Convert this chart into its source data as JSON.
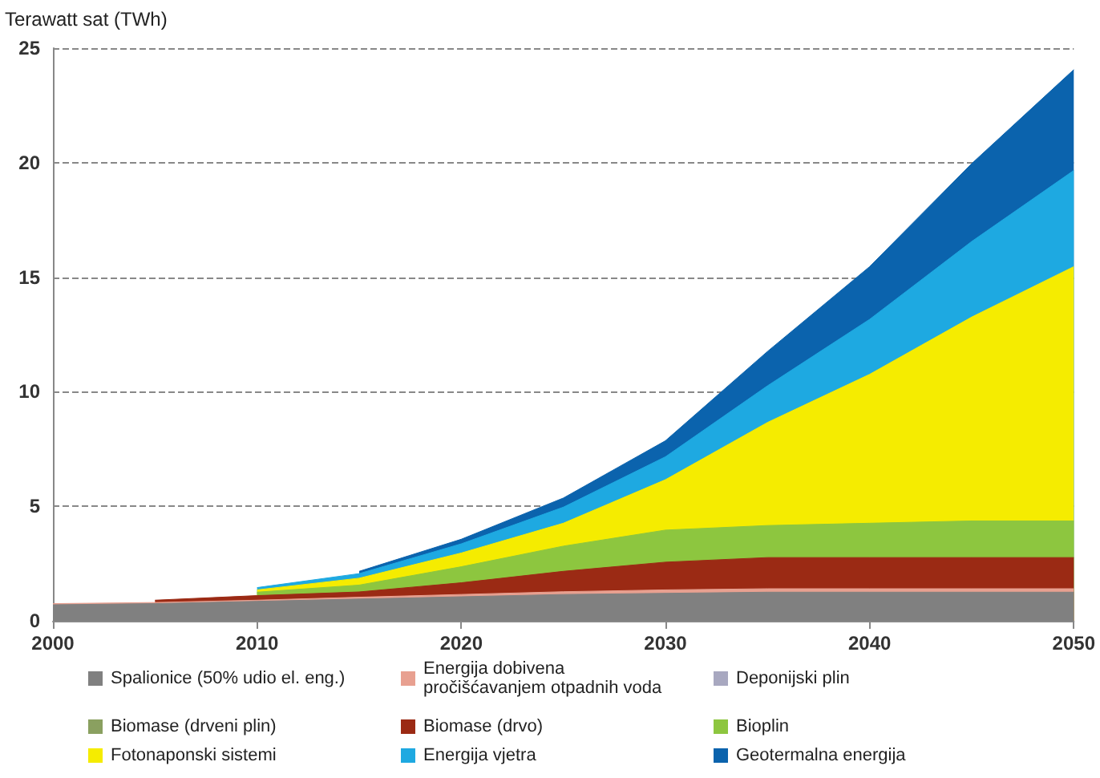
{
  "chart_data": {
    "type": "area",
    "stacked": true,
    "ylabel": "Terawatt sat (TWh)",
    "x": [
      2000,
      2005,
      2010,
      2015,
      2020,
      2025,
      2030,
      2035,
      2040,
      2045,
      2050
    ],
    "xlim": [
      2000,
      2050
    ],
    "xticks": [
      2000,
      2010,
      2020,
      2030,
      2040,
      2050
    ],
    "ylim": [
      0,
      25
    ],
    "yticks": [
      0,
      5,
      10,
      15,
      20,
      25
    ],
    "grid": "y",
    "legend": "bottom",
    "marker": "none",
    "series": [
      {
        "name": "Spalionice (50% udio el. eng.)",
        "color": "#808080",
        "values": [
          0.7,
          0.75,
          0.85,
          0.95,
          1.05,
          1.15,
          1.2,
          1.25,
          1.25,
          1.25,
          1.25
        ]
      },
      {
        "name": "Energija dobivena pročišćavanjem otpadnih voda",
        "color": "#e8a090",
        "values": [
          0.05,
          0.05,
          0.05,
          0.08,
          0.1,
          0.12,
          0.15,
          0.15,
          0.15,
          0.15,
          0.15
        ]
      },
      {
        "name": "Deponijski plin",
        "color": "#a8a8c0",
        "values": [
          null,
          null,
          null,
          null,
          null,
          null,
          null,
          null,
          null,
          null,
          null
        ]
      },
      {
        "name": "Biomase (drveni plin)",
        "color": "#8aa060",
        "values": [
          null,
          null,
          null,
          null,
          null,
          null,
          null,
          null,
          null,
          null,
          null
        ]
      },
      {
        "name": "Biomase (drvo)",
        "color": "#9b2a14",
        "values": [
          null,
          0.1,
          0.2,
          0.23,
          0.51,
          0.89,
          1.21,
          1.36,
          1.36,
          1.36,
          1.36
        ]
      },
      {
        "name": "Bioplin",
        "color": "#8dc63f",
        "values": [
          null,
          null,
          0.15,
          0.3,
          0.7,
          1.1,
          1.4,
          1.4,
          1.5,
          1.6,
          1.6
        ]
      },
      {
        "name": "Fotonaponski sistemi",
        "color": "#f5ec00",
        "values": [
          null,
          null,
          0.1,
          0.3,
          0.6,
          1.0,
          2.2,
          4.5,
          6.5,
          8.9,
          11.1
        ]
      },
      {
        "name": "Energija vjetra",
        "color": "#1ea9e1",
        "values": [
          null,
          null,
          0.1,
          0.2,
          0.4,
          0.7,
          1.0,
          1.6,
          2.4,
          3.3,
          4.2
        ]
      },
      {
        "name": "Geotermalna energija",
        "color": "#0b63ad",
        "values": [
          null,
          null,
          null,
          0.1,
          0.2,
          0.4,
          0.7,
          1.5,
          2.3,
          3.4,
          4.4
        ]
      }
    ]
  }
}
